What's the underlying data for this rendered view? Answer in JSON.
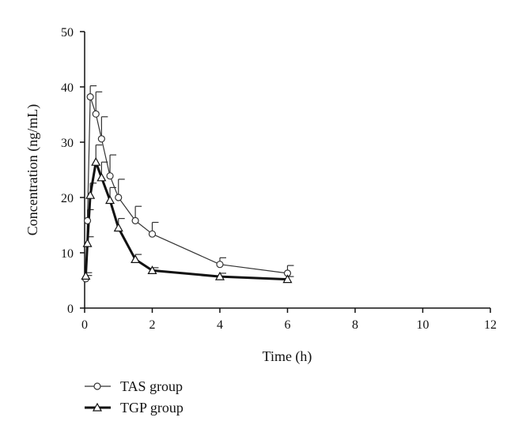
{
  "chart_data": {
    "type": "line",
    "xlabel": "Time (h)",
    "ylabel": "Concentration (ng/mL)",
    "xlim": [
      0,
      12
    ],
    "ylim": [
      0,
      50
    ],
    "xticks": [
      0,
      2,
      4,
      6,
      8,
      10,
      12
    ],
    "yticks": [
      0,
      10,
      20,
      30,
      40,
      50
    ],
    "xtick_labels": [
      "0",
      "2",
      "4",
      "6",
      "8",
      "10",
      "12"
    ],
    "ytick_labels": [
      "0",
      "10",
      "20",
      "30",
      "40",
      "50"
    ],
    "grid": false,
    "legend_position": "bottom-left",
    "series": [
      {
        "name": "TAS group",
        "marker": "circle",
        "color": "#333333",
        "x": [
          0.033,
          0.083,
          0.167,
          0.333,
          0.5,
          0.75,
          1,
          1.5,
          2,
          4,
          6
        ],
        "y": [
          5.3,
          15.8,
          38.2,
          35.1,
          30.6,
          23.9,
          20.0,
          15.8,
          13.4,
          7.9,
          6.3
        ],
        "error": [
          0.6,
          2.0,
          2.0,
          4.0,
          4.0,
          3.8,
          3.3,
          2.6,
          2.1,
          1.2,
          1.4
        ]
      },
      {
        "name": "TGP group",
        "marker": "triangle",
        "color": "#111111",
        "x": [
          0.033,
          0.083,
          0.167,
          0.333,
          0.5,
          0.75,
          1,
          1.5,
          2,
          4,
          6
        ],
        "y": [
          5.8,
          11.7,
          20.4,
          26.4,
          23.6,
          19.5,
          14.5,
          8.8,
          6.8,
          5.7,
          5.2
        ],
        "error": [
          0.6,
          1.2,
          2.2,
          3.1,
          2.8,
          2.3,
          1.7,
          0.9,
          0.5,
          0.6,
          0.5
        ]
      }
    ]
  }
}
